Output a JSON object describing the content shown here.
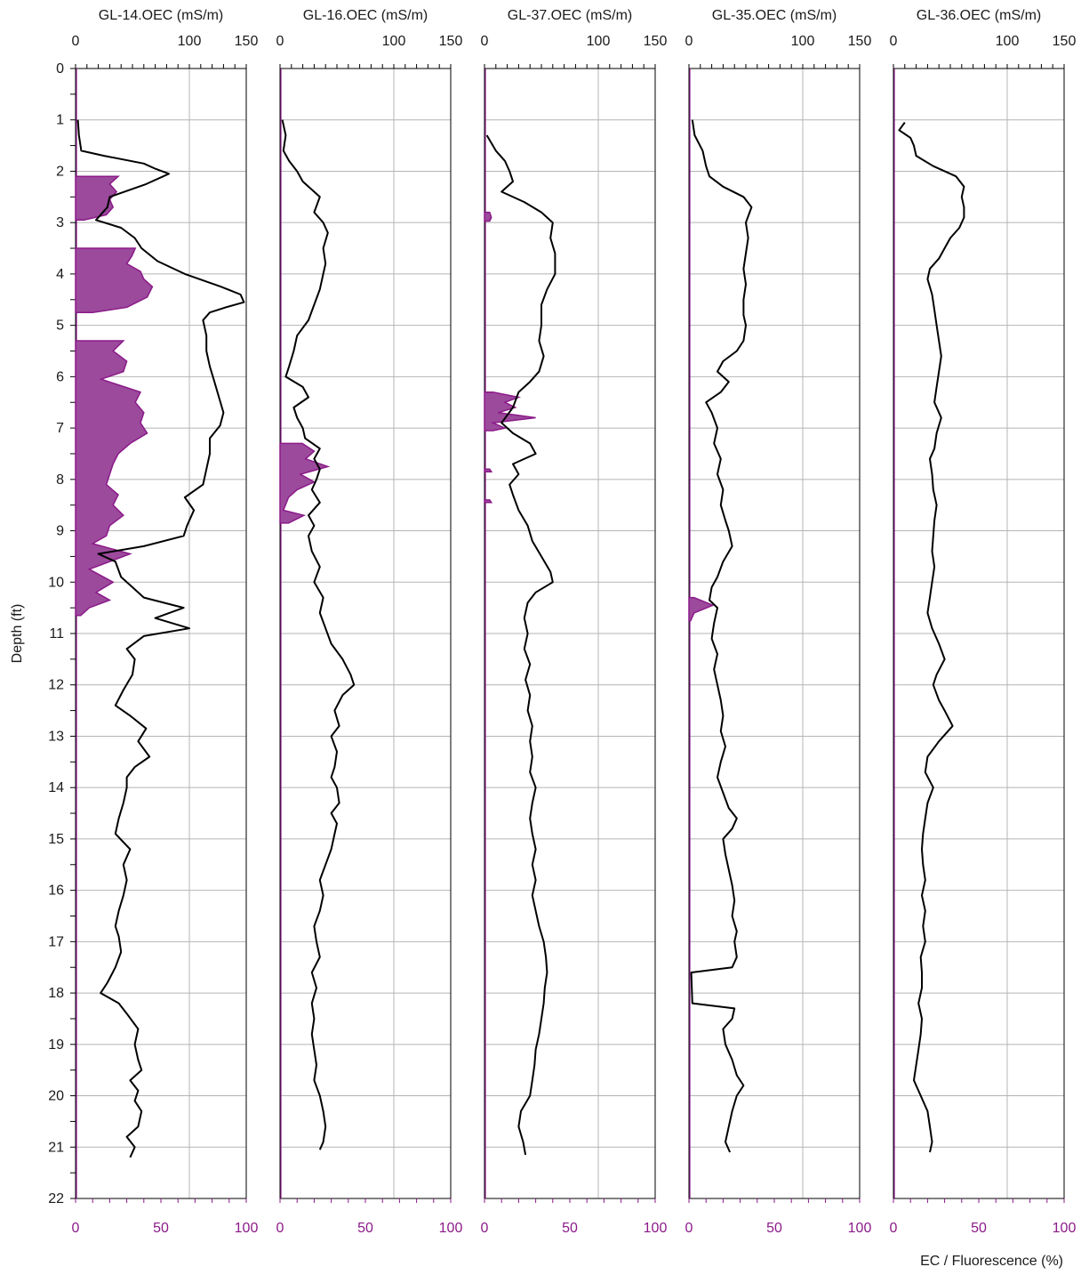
{
  "chart_data": {
    "type": "line",
    "ylabel": "Depth (ft)",
    "xlabel_bottom": "EC / Fluorescence (%)",
    "ylim": [
      0,
      22
    ],
    "yticks": [
      "0",
      "1",
      "2",
      "3",
      "4",
      "5",
      "6",
      "7",
      "8",
      "9",
      "10",
      "11",
      "12",
      "13",
      "14",
      "15",
      "16",
      "17",
      "18",
      "19",
      "20",
      "21",
      "22"
    ],
    "ec_xlim": [
      0,
      150
    ],
    "ec_ticks": [
      "0",
      "100",
      "150"
    ],
    "fluor_xlim": [
      0,
      100
    ],
    "fluor_ticks": [
      "0",
      "50",
      "100"
    ],
    "colors": {
      "ec": "#000000",
      "fluor": "#8b1a89",
      "fluor_fill": "#9c4a9c",
      "grid": "#b4b4b4"
    },
    "panels": [
      {
        "title": "GL-14.OEC (mS/m)",
        "ec": {
          "name": "EC",
          "depth": [
            1.0,
            1.3,
            1.6,
            1.7,
            1.85,
            1.95,
            2.05,
            2.25,
            2.5,
            2.7,
            2.95,
            3.1,
            3.3,
            3.5,
            3.75,
            4.0,
            4.25,
            4.4,
            4.55,
            4.65,
            4.75,
            4.9,
            5.2,
            5.5,
            5.8,
            6.1,
            6.4,
            6.7,
            6.95,
            7.2,
            7.5,
            7.8,
            8.1,
            8.35,
            8.6,
            8.9,
            9.1,
            9.3,
            9.45,
            9.6,
            9.9,
            10.1,
            10.3,
            10.5,
            10.7,
            10.9,
            11.05,
            11.3,
            11.5,
            11.8,
            12.1,
            12.4,
            12.6,
            12.85,
            13.1,
            13.4,
            13.6,
            13.8,
            14.0,
            14.3,
            14.6,
            14.9,
            15.2,
            15.5,
            15.8,
            16.1,
            16.4,
            16.7,
            16.9,
            17.2,
            17.5,
            17.8,
            18.0,
            18.2,
            18.4,
            18.7,
            19.0,
            19.3,
            19.5,
            19.7,
            19.9,
            20.1,
            20.3,
            20.6,
            20.8,
            21.0,
            21.2
          ],
          "values": [
            2,
            3,
            5,
            25,
            60,
            70,
            82,
            62,
            30,
            28,
            18,
            40,
            52,
            58,
            72,
            96,
            128,
            145,
            148,
            132,
            118,
            112,
            115,
            115,
            118,
            122,
            126,
            130,
            127,
            118,
            118,
            115,
            112,
            96,
            104,
            98,
            95,
            60,
            20,
            35,
            40,
            50,
            60,
            95,
            70,
            100,
            60,
            45,
            52,
            50,
            42,
            35,
            48,
            62,
            55,
            65,
            52,
            45,
            45,
            42,
            38,
            35,
            48,
            42,
            45,
            42,
            38,
            35,
            38,
            40,
            35,
            28,
            22,
            38,
            45,
            55,
            52,
            55,
            58,
            48,
            55,
            52,
            58,
            55,
            45,
            52,
            48
          ]
        },
        "fluor": {
          "name": "Fluorescence",
          "depth": [
            2.1,
            2.25,
            2.4,
            2.55,
            2.7,
            2.85,
            2.95,
            3.5,
            3.65,
            3.8,
            3.95,
            4.1,
            4.25,
            4.45,
            4.65,
            4.75,
            5.3,
            5.5,
            5.7,
            5.9,
            6.05,
            6.3,
            6.5,
            6.7,
            6.9,
            7.1,
            7.3,
            7.5,
            7.7,
            7.9,
            8.1,
            8.3,
            8.5,
            8.7,
            8.9,
            9.1,
            9.25,
            9.45,
            9.6,
            9.75,
            10.0,
            10.2,
            10.35,
            10.5,
            10.65
          ],
          "values": [
            25,
            20,
            24,
            20,
            22,
            18,
            5,
            35,
            33,
            30,
            38,
            40,
            45,
            42,
            30,
            10,
            28,
            22,
            30,
            28,
            15,
            38,
            35,
            40,
            38,
            42,
            32,
            25,
            22,
            20,
            18,
            25,
            22,
            28,
            20,
            18,
            10,
            32,
            20,
            8,
            22,
            12,
            20,
            8,
            3
          ]
        }
      },
      {
        "title": "GL-16.OEC (mS/m)",
        "ec": {
          "name": "EC",
          "depth": [
            1.0,
            1.3,
            1.6,
            1.8,
            2.0,
            2.2,
            2.5,
            2.8,
            3.0,
            3.2,
            3.5,
            3.8,
            4.0,
            4.3,
            4.6,
            4.9,
            5.2,
            5.5,
            5.8,
            6.0,
            6.2,
            6.4,
            6.6,
            6.8,
            7.0,
            7.2,
            7.4,
            7.6,
            7.8,
            8.0,
            8.2,
            8.45,
            8.7,
            8.9,
            9.1,
            9.4,
            9.7,
            10.0,
            10.3,
            10.6,
            10.9,
            11.2,
            11.5,
            11.8,
            12.0,
            12.2,
            12.5,
            12.8,
            13.0,
            13.3,
            13.6,
            13.8,
            14.0,
            14.3,
            14.5,
            14.7,
            14.9,
            15.2,
            15.5,
            15.8,
            16.1,
            16.4,
            16.7,
            17.0,
            17.3,
            17.6,
            17.9,
            18.2,
            18.5,
            18.8,
            19.1,
            19.4,
            19.7,
            20.0,
            20.3,
            20.6,
            20.9,
            21.05
          ],
          "values": [
            2,
            5,
            3,
            8,
            15,
            20,
            35,
            30,
            38,
            42,
            38,
            40,
            38,
            35,
            30,
            25,
            15,
            12,
            8,
            5,
            20,
            25,
            12,
            15,
            20,
            22,
            35,
            30,
            35,
            32,
            28,
            35,
            25,
            30,
            25,
            28,
            35,
            30,
            38,
            35,
            40,
            45,
            55,
            62,
            65,
            55,
            48,
            52,
            45,
            50,
            48,
            45,
            50,
            52,
            45,
            50,
            48,
            45,
            40,
            35,
            38,
            35,
            30,
            32,
            35,
            28,
            32,
            28,
            30,
            28,
            30,
            32,
            30,
            35,
            38,
            40,
            38,
            35
          ]
        },
        "fluor": {
          "name": "Fluorescence",
          "depth": [
            7.3,
            7.45,
            7.6,
            7.75,
            7.9,
            8.05,
            8.2,
            8.35,
            8.6,
            8.7,
            8.85
          ],
          "values": [
            13,
            20,
            15,
            28,
            12,
            20,
            10,
            5,
            2,
            14,
            5
          ]
        }
      },
      {
        "title": "GL-37.OEC (mS/m)",
        "ec": {
          "name": "EC",
          "depth": [
            1.3,
            1.6,
            1.8,
            2.0,
            2.2,
            2.4,
            2.6,
            2.8,
            3.0,
            3.3,
            3.6,
            4.0,
            4.3,
            4.6,
            5.0,
            5.3,
            5.6,
            5.9,
            6.1,
            6.3,
            6.6,
            6.9,
            7.1,
            7.3,
            7.5,
            7.7,
            7.9,
            8.1,
            8.3,
            8.6,
            8.9,
            9.2,
            9.5,
            9.8,
            10.0,
            10.2,
            10.4,
            10.7,
            11.0,
            11.3,
            11.6,
            11.9,
            12.2,
            12.5,
            12.8,
            13.1,
            13.4,
            13.7,
            14.0,
            14.3,
            14.6,
            14.9,
            15.2,
            15.5,
            15.8,
            16.1,
            16.4,
            16.7,
            17.0,
            17.3,
            17.6,
            17.9,
            18.2,
            18.5,
            18.8,
            19.1,
            19.4,
            19.7,
            20.0,
            20.3,
            20.6,
            20.9,
            21.15
          ],
          "values": [
            2,
            10,
            18,
            22,
            25,
            15,
            35,
            50,
            60,
            58,
            62,
            62,
            55,
            50,
            50,
            48,
            52,
            48,
            40,
            30,
            25,
            15,
            25,
            40,
            45,
            25,
            30,
            22,
            25,
            30,
            38,
            42,
            50,
            58,
            60,
            45,
            38,
            35,
            38,
            35,
            40,
            36,
            40,
            38,
            42,
            40,
            42,
            40,
            45,
            42,
            40,
            42,
            45,
            42,
            45,
            42,
            45,
            48,
            52,
            54,
            55,
            53,
            52,
            50,
            48,
            45,
            44,
            42,
            40,
            32,
            30,
            34,
            36
          ]
        },
        "fluor": {
          "name": "Fluorescence",
          "depth": [
            2.8,
            2.9,
            2.97,
            6.3,
            6.4,
            6.5,
            6.6,
            6.7,
            6.8,
            6.9,
            7.0,
            7.05,
            7.8,
            7.85,
            8.4,
            8.45
          ],
          "values": [
            3,
            4,
            3,
            5,
            20,
            12,
            18,
            8,
            30,
            5,
            12,
            5,
            3,
            4,
            3,
            4
          ]
        }
      },
      {
        "title": "GL-35.OEC (mS/m)",
        "ec": {
          "name": "EC",
          "depth": [
            1.0,
            1.3,
            1.6,
            1.9,
            2.1,
            2.3,
            2.5,
            2.7,
            3.0,
            3.3,
            3.6,
            3.9,
            4.2,
            4.5,
            4.8,
            5.0,
            5.3,
            5.5,
            5.7,
            5.9,
            6.1,
            6.3,
            6.5,
            6.7,
            7.0,
            7.3,
            7.6,
            7.9,
            8.2,
            8.5,
            8.8,
            9.0,
            9.3,
            9.6,
            9.9,
            10.1,
            10.35,
            10.5,
            10.8,
            11.1,
            11.4,
            11.7,
            12.0,
            12.3,
            12.6,
            12.9,
            13.2,
            13.5,
            13.8,
            14.1,
            14.4,
            14.6,
            14.8,
            15.0,
            15.3,
            15.6,
            15.9,
            16.2,
            16.5,
            16.8,
            17.0,
            17.3,
            17.5,
            17.6,
            18.2,
            18.3,
            18.5,
            18.7,
            19.0,
            19.3,
            19.6,
            19.8,
            20.0,
            20.3,
            20.6,
            20.9,
            21.1
          ],
          "values": [
            3,
            5,
            12,
            15,
            18,
            30,
            48,
            55,
            50,
            52,
            50,
            48,
            50,
            48,
            48,
            50,
            48,
            42,
            30,
            25,
            35,
            28,
            15,
            20,
            25,
            22,
            28,
            25,
            30,
            28,
            32,
            35,
            38,
            30,
            25,
            20,
            18,
            25,
            22,
            20,
            25,
            22,
            25,
            28,
            30,
            28,
            32,
            28,
            25,
            30,
            35,
            42,
            38,
            30,
            32,
            35,
            38,
            40,
            38,
            42,
            40,
            42,
            38,
            2,
            3,
            40,
            38,
            30,
            32,
            38,
            42,
            48,
            42,
            38,
            35,
            32,
            36
          ]
        },
        "fluor": {
          "name": "Fluorescence",
          "depth": [
            10.3,
            10.45,
            10.6,
            10.75
          ],
          "values": [
            3,
            14,
            3,
            1
          ]
        }
      },
      {
        "title": "GL-36.OEC (mS/m)",
        "ec": {
          "name": "EC",
          "depth": [
            1.05,
            1.2,
            1.35,
            1.5,
            1.7,
            1.9,
            2.1,
            2.3,
            2.5,
            2.7,
            2.9,
            3.1,
            3.3,
            3.5,
            3.7,
            3.9,
            4.1,
            4.4,
            4.7,
            5.0,
            5.3,
            5.6,
            5.9,
            6.2,
            6.5,
            6.8,
            7.1,
            7.4,
            7.6,
            7.9,
            8.2,
            8.5,
            8.8,
            9.1,
            9.4,
            9.7,
            10.0,
            10.3,
            10.6,
            10.9,
            11.2,
            11.5,
            11.8,
            12.0,
            12.3,
            12.5,
            12.8,
            13.1,
            13.4,
            13.7,
            14.0,
            14.3,
            14.6,
            14.9,
            15.2,
            15.5,
            15.8,
            16.1,
            16.4,
            16.7,
            17.0,
            17.3,
            17.6,
            17.9,
            18.2,
            18.5,
            18.8,
            19.1,
            19.4,
            19.7,
            20.0,
            20.3,
            20.6,
            20.9,
            21.1
          ],
          "values": [
            10,
            5,
            15,
            18,
            20,
            35,
            55,
            62,
            60,
            62,
            62,
            58,
            50,
            45,
            40,
            32,
            30,
            34,
            36,
            38,
            40,
            42,
            40,
            38,
            36,
            42,
            38,
            36,
            32,
            34,
            35,
            38,
            36,
            35,
            34,
            36,
            34,
            32,
            30,
            34,
            40,
            45,
            38,
            35,
            40,
            45,
            52,
            40,
            30,
            28,
            35,
            30,
            28,
            26,
            25,
            26,
            28,
            25,
            28,
            26,
            28,
            24,
            25,
            25,
            22,
            25,
            24,
            22,
            20,
            18,
            24,
            30,
            32,
            34,
            32
          ]
        },
        "fluor": {
          "name": "Fluorescence",
          "depth": [],
          "values": []
        }
      }
    ]
  }
}
